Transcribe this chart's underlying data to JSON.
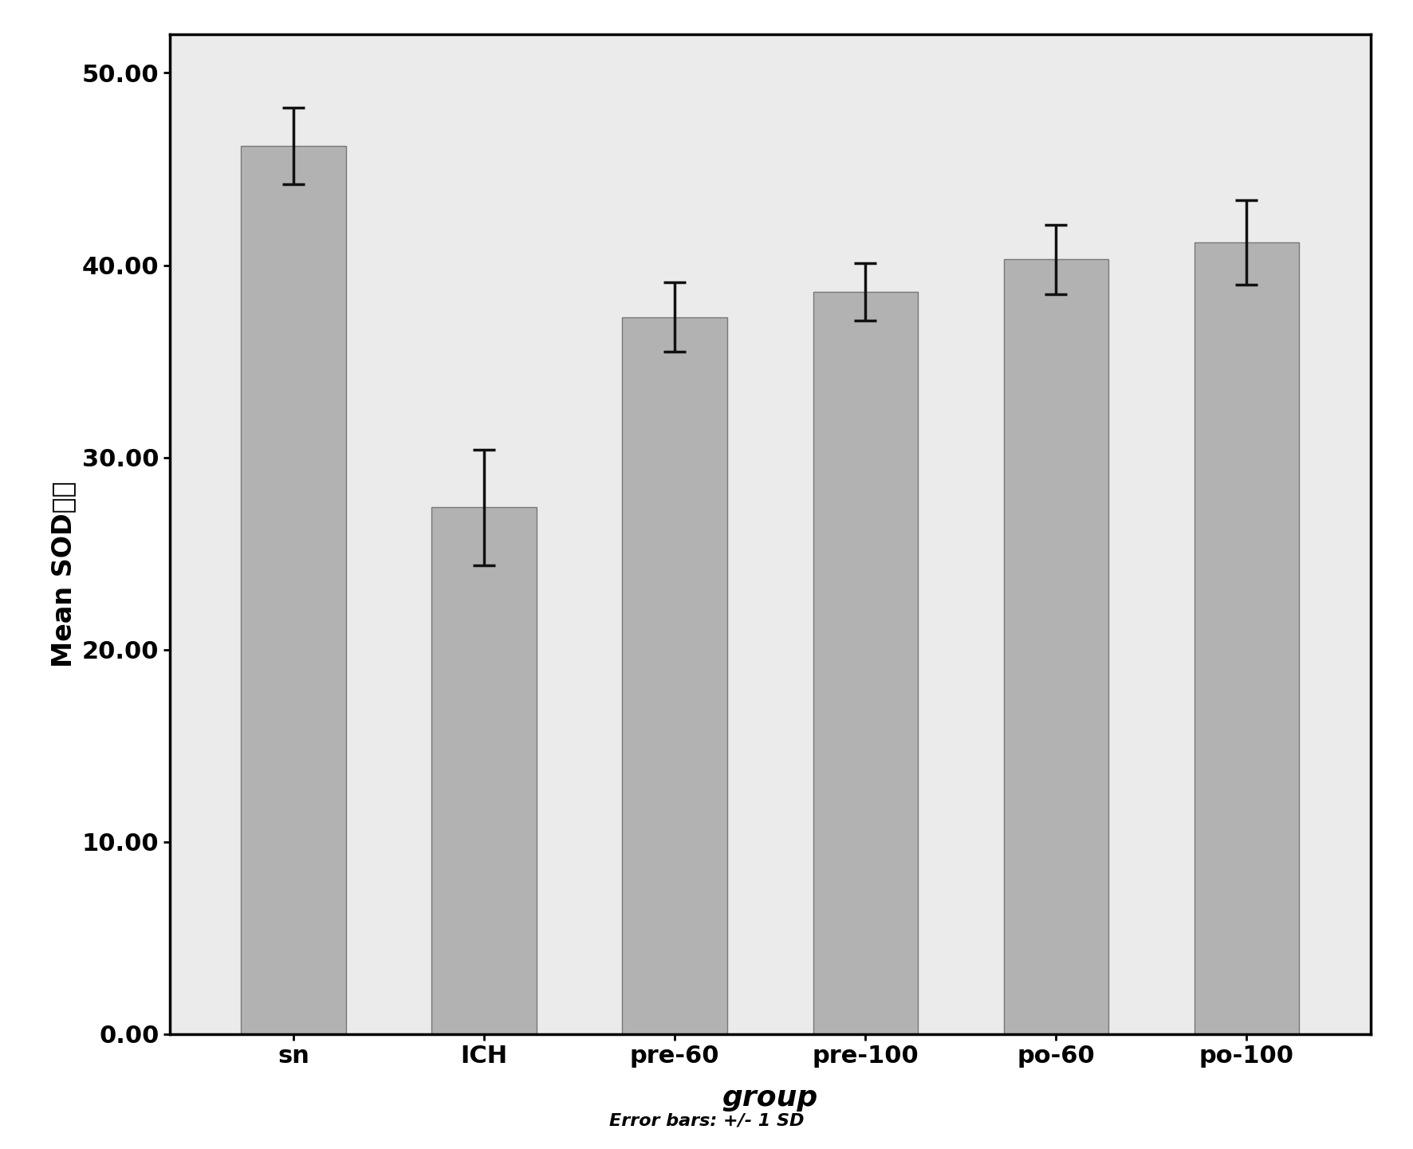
{
  "categories": [
    "sn",
    "ICH",
    "pre-60",
    "pre-100",
    "po-60",
    "po-100"
  ],
  "values": [
    46.2,
    27.4,
    37.3,
    38.6,
    40.3,
    41.2
  ],
  "errors": [
    2.0,
    3.0,
    1.8,
    1.5,
    1.8,
    2.2
  ],
  "bar_color": "#b2b2b2",
  "bar_edge_color": "#777777",
  "error_color": "#111111",
  "ylabel_latin": "Mean SOD",
  "ylabel_cjk": "活力",
  "xlabel": "group",
  "footnote": "Error bars: +/- 1 SD",
  "ylim": [
    0,
    52
  ],
  "yticks": [
    0.0,
    10.0,
    20.0,
    30.0,
    40.0,
    50.0
  ],
  "fig_bg_color": "#ffffff",
  "plot_bg_color": "#ebebeb",
  "bar_width": 0.55,
  "figsize": [
    17.72,
    14.41
  ],
  "dpi": 100
}
